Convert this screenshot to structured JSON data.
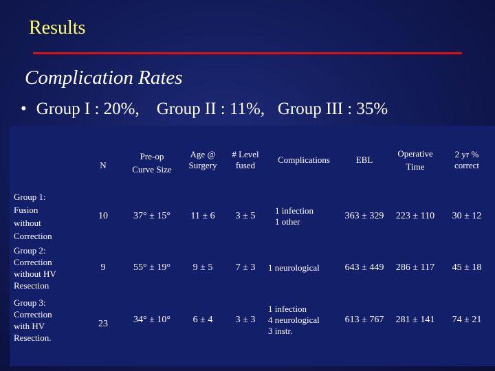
{
  "slide": {
    "title": "Results",
    "subtitle": "Complication Rates",
    "bullet": "Group I : 20%,    Group II : 11%,   Group III : 35%",
    "bullet_symbol": "•"
  },
  "colors": {
    "background": "#131c5c",
    "title": "#ffff66",
    "rule": "#e01010",
    "text": "#ffffff"
  },
  "table": {
    "headers": [
      "",
      "N",
      "Pre-op\nCurve Size",
      "Age @\nSurgery",
      "# Level\nfused",
      "Complications",
      "EBL",
      "Operative\nTime",
      "2 yr  %\ncorrect"
    ],
    "rows": [
      {
        "label": "Group 1:\n   Fusion\n   without\n   Correction",
        "n": "10",
        "curve": "37° ± 15°",
        "age": "11 ± 6",
        "levels": "3 ± 5",
        "complications": "1 infection\n1 other",
        "ebl": "363  ± 329",
        "time": "223  ± 110",
        "correct": "30  ± 12"
      },
      {
        "label": "Group 2:\n   Correction\n   without HV\n   Resection",
        "n": "9",
        "curve": "55° ± 19°",
        "age": "9 ± 5",
        "levels": "7 ± 3",
        "complications": "1 neurological",
        "ebl": "643  ± 449",
        "time": "286 ± 117",
        "correct": "45  ± 18"
      },
      {
        "label": "Group 3:\n   Correction\n   with HV\n   Resection.",
        "n": "23",
        "curve": "34° ± 10°",
        "age": "6 ± 4",
        "levels": "3 ± 3",
        "complications": "1 infection\n4 neurological\n3 instr.",
        "ebl": "613  ± 767",
        "time": "281  ± 141",
        "correct": "74  ± 21"
      }
    ]
  }
}
